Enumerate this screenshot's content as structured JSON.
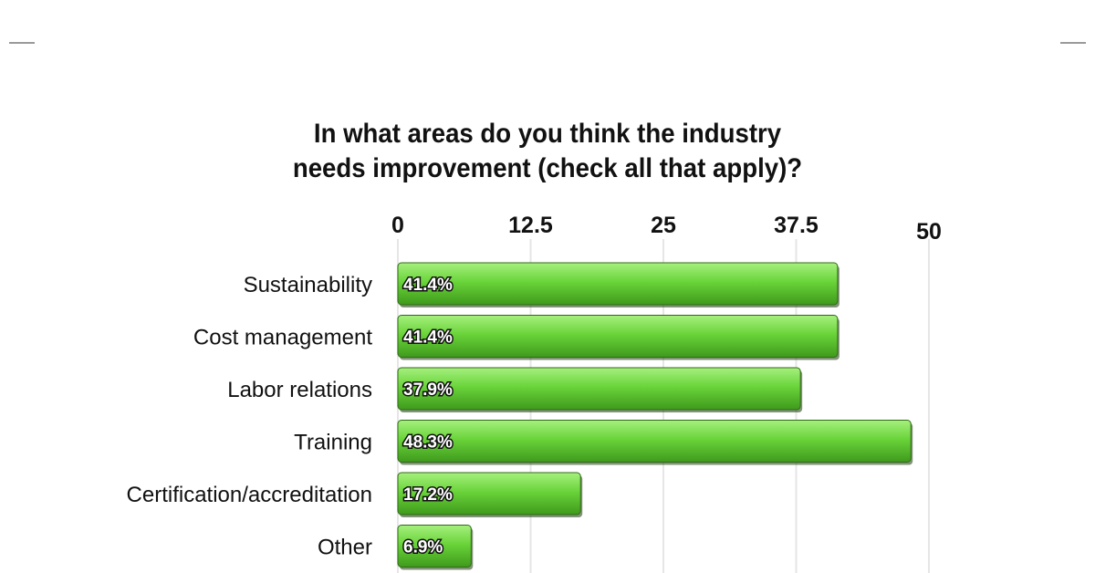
{
  "chart_data": {
    "type": "bar",
    "orientation": "horizontal",
    "title_line1": "In what areas do you think the industry",
    "title_line2": "needs improvement (check all that apply)?",
    "categories": [
      "Sustainability",
      "Cost management",
      "Labor relations",
      "Training",
      "Certification/accreditation",
      "Other"
    ],
    "values": [
      41.4,
      41.4,
      37.9,
      48.3,
      17.2,
      6.9
    ],
    "value_labels": [
      "41.4%",
      "41.4%",
      "37.9%",
      "48.3%",
      "17.2%",
      "6.9%"
    ],
    "xticks": [
      0,
      12.5,
      25,
      37.5,
      50
    ],
    "xtick_labels": [
      "0",
      "12.5",
      "25",
      "37.5",
      "50"
    ],
    "xlim": [
      0,
      50
    ],
    "axis_position": "top",
    "grid": true,
    "legend": "none",
    "bar_color": "#6ad43a"
  }
}
